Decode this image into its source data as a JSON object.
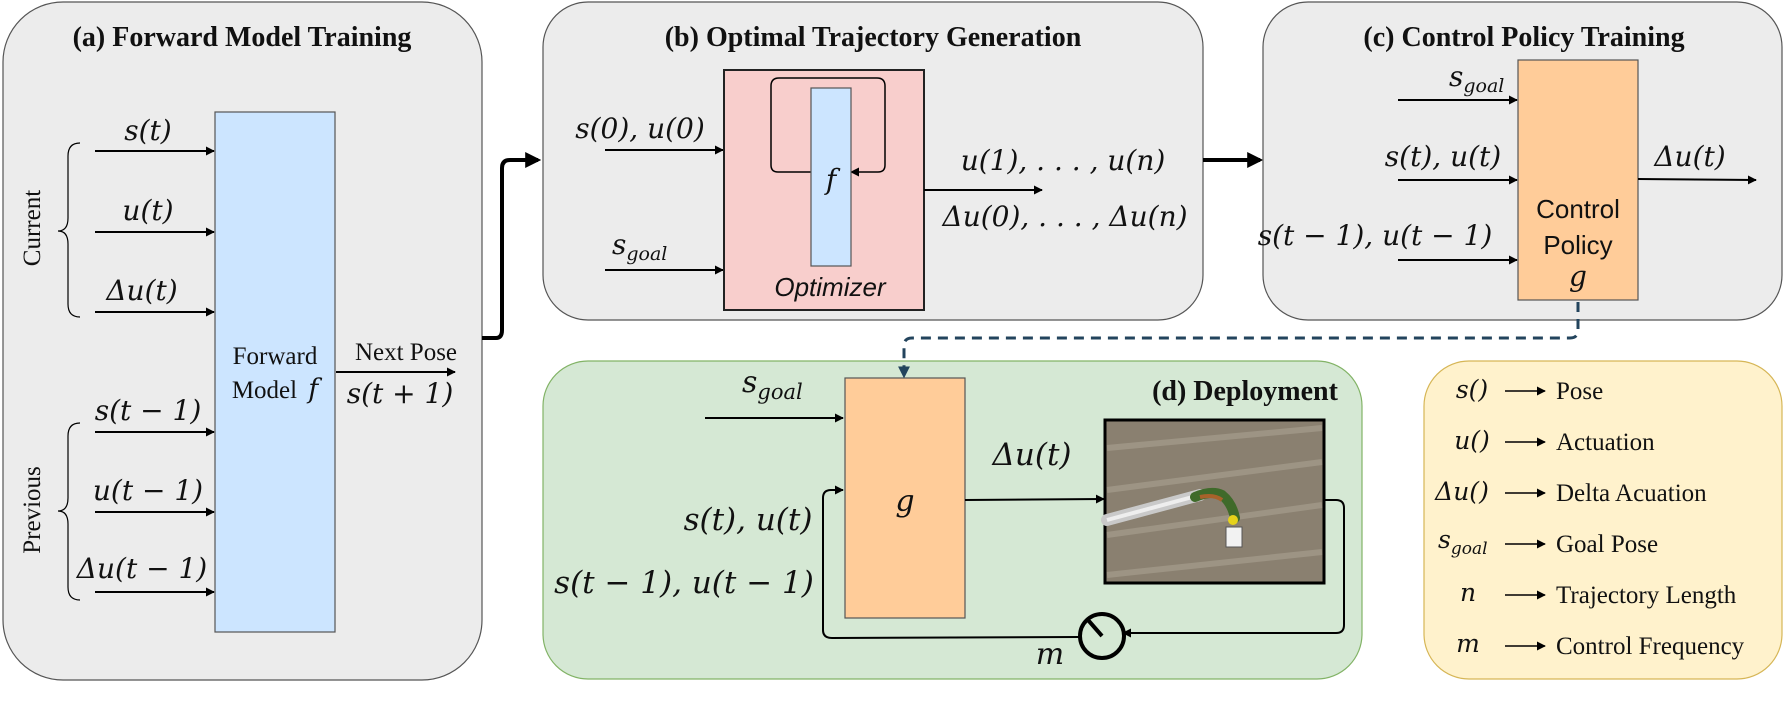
{
  "panels": {
    "forward_model": {
      "title": "(a) Forward Model Training",
      "group_current": "Current",
      "group_previous": "Previous",
      "inputs": [
        "s(t)",
        "u(t)",
        "Δu(t)",
        "s(t − 1)",
        "u(t − 1)",
        "Δu(t − 1)"
      ],
      "block_line1": "Forward",
      "block_line2": "Model",
      "block_symbol": "f",
      "output_label": "Next Pose",
      "output_value": "s(t + 1)"
    },
    "trajectory": {
      "title": "(b) Optimal Trajectory Generation",
      "input_1": "s(0), u(0)",
      "input_2_base": "s",
      "input_2_sub": "goal",
      "inner_symbol": "f",
      "optimizer_label": "Optimizer",
      "output_1": "u(1), . . . , u(n)",
      "output_2": "Δu(0), . . . , Δu(n)"
    },
    "control_policy": {
      "title": "(c) Control Policy Training",
      "input_1_base": "s",
      "input_1_sub": "goal",
      "input_2": "s(t), u(t)",
      "input_3": "s(t − 1), u(t − 1)",
      "block_line1": "Control",
      "block_line2": "Policy",
      "block_symbol": "g",
      "output": "Δu(t)"
    },
    "deployment": {
      "title": "(d) Deployment",
      "goal_base": "s",
      "goal_sub": "goal",
      "block_symbol": "g",
      "output": "Δu(t)",
      "feedback_1": "s(t), u(t)",
      "feedback_2": "s(t − 1), u(t − 1)",
      "rate_symbol": "m"
    }
  },
  "legend": {
    "items": [
      {
        "symbol": "s()",
        "label": "Pose"
      },
      {
        "symbol": "u()",
        "label": "Actuation"
      },
      {
        "symbol": "Δu()",
        "label": "Delta Acuation"
      },
      {
        "symbol_base": "s",
        "symbol_sub": "goal",
        "label": "Goal Pose"
      },
      {
        "symbol": "n",
        "label": "Trajectory Length"
      },
      {
        "symbol": "m",
        "label": "Control Frequency"
      }
    ]
  },
  "colors": {
    "panel_gray": "#ececec",
    "panel_green": "#d5e8d4",
    "panel_yellow": "#fff2cc",
    "block_blue": "#cce5ff",
    "block_orange": "#ffcc99",
    "block_pink": "#f8cecc",
    "dashed_link": "#23445d"
  }
}
